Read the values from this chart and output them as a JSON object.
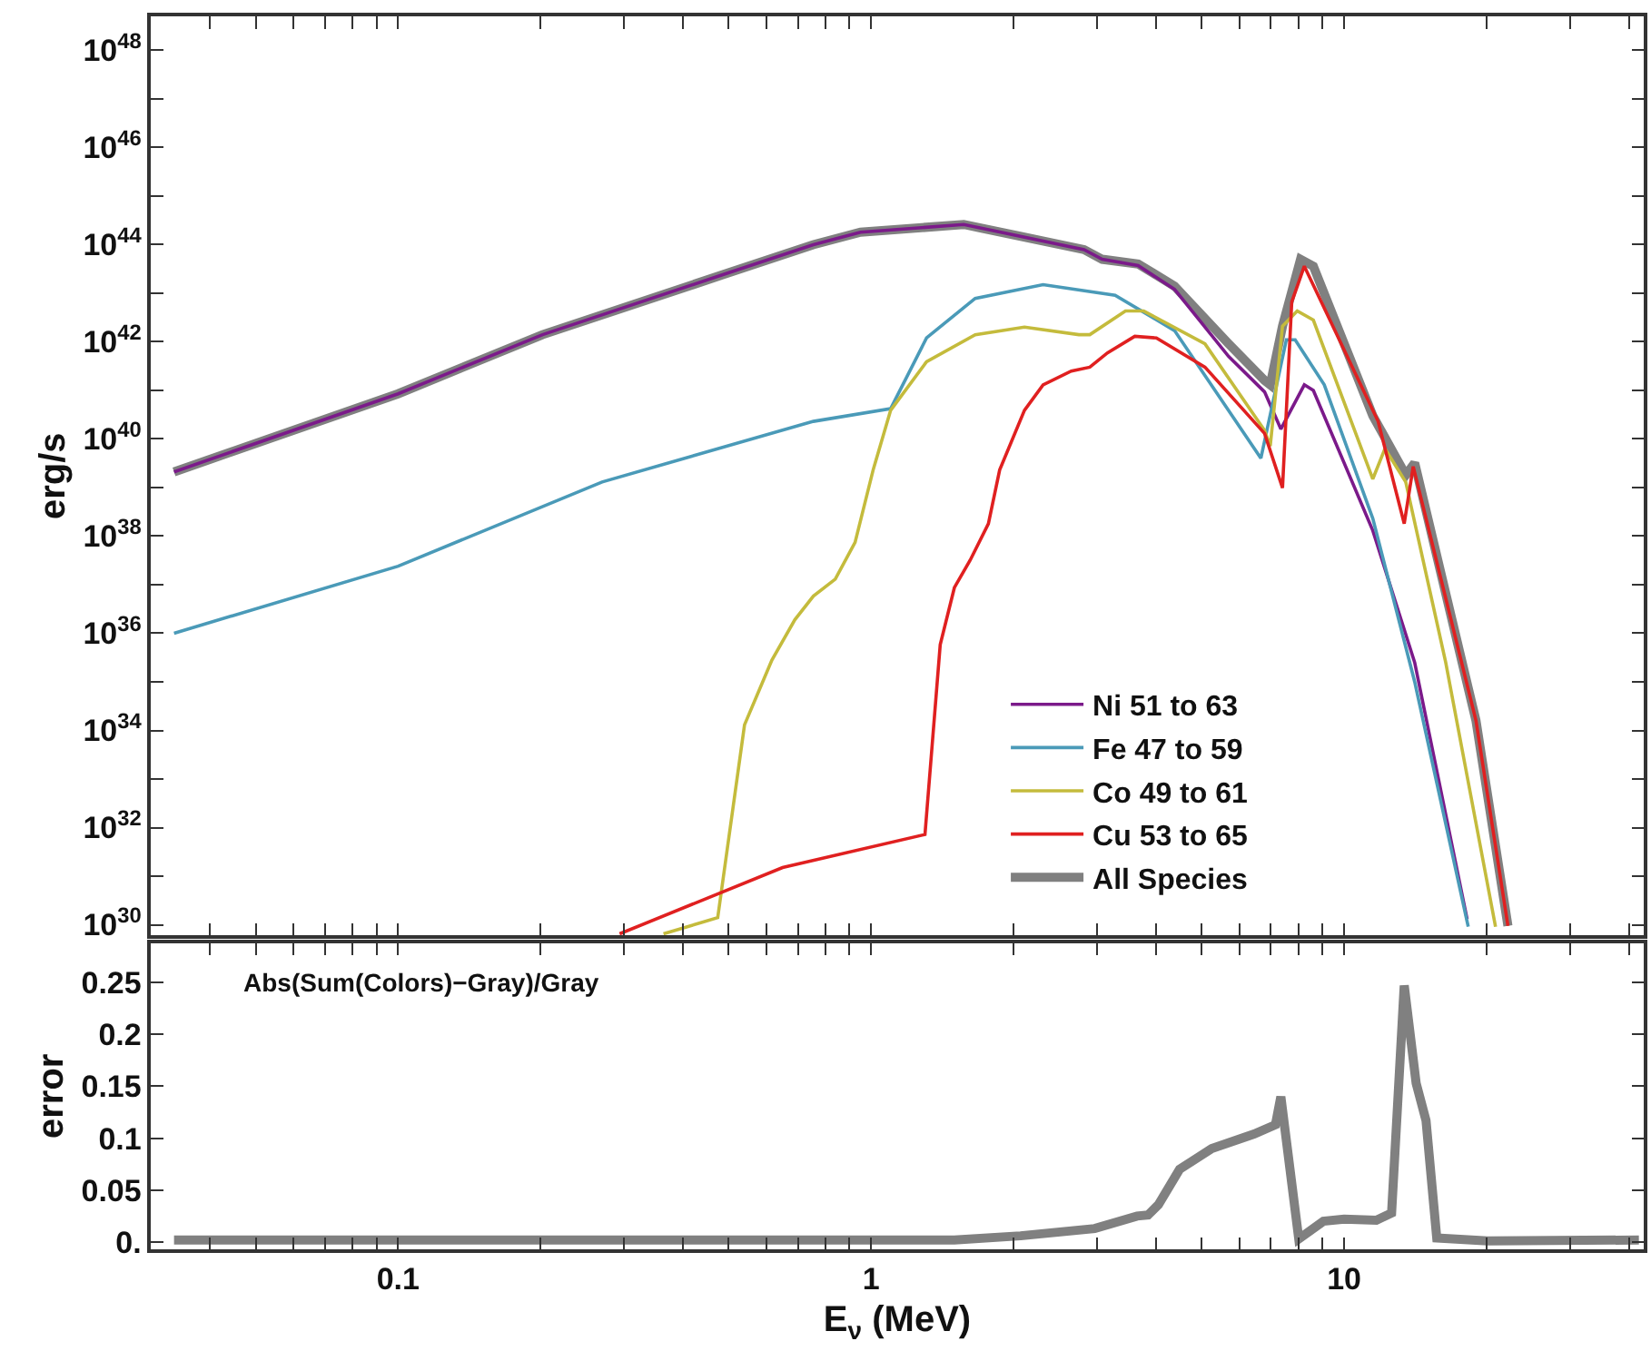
{
  "chart_data": [
    {
      "type": "line",
      "ylabel": "erg/s",
      "log": "xy",
      "legend": "bottom right",
      "tick_labels": "y",
      "xlim": [
        0.03,
        43
      ],
      "xticks": [
        {
          "value": 0.03,
          "label": null
        },
        {
          "value": 0.04,
          "label": null
        },
        {
          "value": 0.05,
          "label": null
        },
        {
          "value": 0.06,
          "label": null
        },
        {
          "value": 0.07,
          "label": null
        },
        {
          "value": 0.08,
          "label": null
        },
        {
          "value": 0.09,
          "label": null
        },
        {
          "value": 0.1,
          "label": null
        },
        {
          "value": 0.2,
          "label": null
        },
        {
          "value": 0.3,
          "label": null
        },
        {
          "value": 0.4,
          "label": null
        },
        {
          "value": 0.5,
          "label": null
        },
        {
          "value": 0.6,
          "label": null
        },
        {
          "value": 0.7,
          "label": null
        },
        {
          "value": 0.8,
          "label": null
        },
        {
          "value": 0.9,
          "label": null
        },
        {
          "value": 1,
          "label": null
        },
        {
          "value": 2,
          "label": null
        },
        {
          "value": 3,
          "label": null
        },
        {
          "value": 4,
          "label": null
        },
        {
          "value": 5,
          "label": null
        },
        {
          "value": 6,
          "label": null
        },
        {
          "value": 7,
          "label": null
        },
        {
          "value": 8,
          "label": null
        },
        {
          "value": 9,
          "label": null
        },
        {
          "value": 10,
          "label": null
        },
        {
          "value": 20,
          "label": null
        },
        {
          "value": 30,
          "label": null
        },
        {
          "value": 40,
          "label": null
        }
      ],
      "ylim": [
        6e+29,
        5e+48
      ],
      "yticks": [
        {
          "value": 1e+30,
          "label": "10$^{30}$"
        },
        {
          "value": 1e+31,
          "label": null
        },
        {
          "value": 1e+32,
          "label": "10$^{32}$"
        },
        {
          "value": 1e+33,
          "label": null
        },
        {
          "value": 1e+34,
          "label": "10$^{34}$"
        },
        {
          "value": 1e+35,
          "label": null
        },
        {
          "value": 1e+36,
          "label": "10$^{36}$"
        },
        {
          "value": 1e+37,
          "label": null
        },
        {
          "value": 1e+38,
          "label": "10$^{38}$"
        },
        {
          "value": 1e+39,
          "label": null
        },
        {
          "value": 1e+40,
          "label": "10$^{40}$"
        },
        {
          "value": 1e+41,
          "label": null
        },
        {
          "value": 1e+42,
          "label": "10$^{42}$"
        },
        {
          "value": 1e+43,
          "label": null
        },
        {
          "value": 1e+44,
          "label": "10$^{44}$"
        },
        {
          "value": 1e+45,
          "label": null
        },
        {
          "value": 1e+46,
          "label": "10$^{46}$"
        },
        {
          "value": 1e+47,
          "label": null
        },
        {
          "value": 1e+48,
          "label": "10$^{48}$"
        }
      ],
      "series": [
        {
          "name": "Ni 51 to 63",
          "color": "#7b1a8a",
          "x": [
            0.0336,
            0.1,
            0.202,
            0.486,
            0.755,
            0.95,
            1.57,
            2.82,
            3.08,
            3.67,
            4.38,
            5.7,
            6.79,
            7.35,
            8.24,
            8.61,
            11.5,
            14.1,
            18.2
          ],
          "values": [
            2.1e+39,
            8.5e+40,
            1.4e+42,
            2.4e+43,
            1e+44,
            1.8e+44,
            2.6e+44,
            7.9e+43,
            5e+43,
            3.7e+43,
            1.2e+43,
            5e+41,
            9.3e+40,
            1.6e+40,
            1.3e+41,
            1e+41,
            1.3e+38,
            2.5e+35,
            1.3e+30
          ]
        },
        {
          "name": "Fe 47 to 59",
          "color": "#4a9ab8",
          "x": [
            0.0336,
            0.1,
            0.27,
            0.755,
            1.1,
            1.31,
            1.66,
            2.31,
            3.28,
            4.38,
            6.67,
            7.55,
            7.88,
            9.08,
            11.5,
            14.1,
            18.3
          ],
          "values": [
            1e+36,
            2.4e+37,
            1.3e+39,
            2.3e+40,
            4.2e+40,
            1.2e+42,
            7.8e+42,
            1.5e+43,
            9.1e+42,
            1.7e+42,
            4e+39,
            1.1e+42,
            1.1e+42,
            1.3e+41,
            2.3e+38,
            1e+35,
            9.1e+29
          ]
        },
        {
          "name": "Co 49 to 61",
          "color": "#c4bb3c",
          "x": [
            0.364,
            0.474,
            0.54,
            0.617,
            0.69,
            0.755,
            0.84,
            0.925,
            1.01,
            1.1,
            1.31,
            1.66,
            2.11,
            2.75,
            2.9,
            3.45,
            3.77,
            5.08,
            6.79,
            6.98,
            7.41,
            7.96,
            8.61,
            11.5,
            12.2,
            13.5,
            16.4,
            20.9
          ],
          "values": [
            6.5e+29,
            1.4e+30,
            1.3e+34,
            2.8e+35,
            1.9e+36,
            5.8e+36,
            1.3e+37,
            7.4e+37,
            2.3e+39,
            3.9e+40,
            3.9e+41,
            1.4e+42,
            2e+42,
            1.4e+42,
            1.4e+42,
            4.3e+42,
            4.3e+42,
            9.1e+41,
            1.5e+40,
            7.1e+39,
            2.1e+42,
            4.3e+42,
            2.8e+42,
            1.5e+39,
            6.3e+39,
            1.3e+39,
            2.5e+35,
            9.1e+29
          ]
        },
        {
          "name": "Cu 53 to 65",
          "color": "#e02020",
          "x": [
            0.294,
            0.65,
            1.3,
            1.4,
            1.5,
            1.62,
            1.77,
            1.87,
            2.11,
            2.31,
            2.65,
            2.9,
            3.16,
            3.61,
            4.01,
            5.08,
            6.79,
            7.41,
            7.75,
            8.24,
            11.8,
            13.4,
            14.0,
            19.0,
            22.2
          ],
          "values": [
            6.5e+29,
            1.5e+31,
            7.2e+31,
            5.8e+35,
            8.7e+36,
            3.2e+37,
            1.8e+38,
            2.3e+39,
            3.9e+40,
            1.3e+41,
            2.5e+41,
            3e+41,
            5.9e+41,
            1.3e+42,
            1.2e+42,
            3e+41,
            1.3e+40,
            9.8e+38,
            6.6e+42,
            3.6e+43,
            2.3e+40,
            1.8e+38,
            2.7e+39,
            1.6e+34,
            9.5e+29
          ]
        },
        {
          "name": "All Species",
          "color": "#808080",
          "x": [
            0.0336,
            0.1,
            0.202,
            0.486,
            0.755,
            0.95,
            1.57,
            2.82,
            3.08,
            3.67,
            4.38,
            5.7,
            6.79,
            6.98,
            7.41,
            8.09,
            8.61,
            11.5,
            13.5,
            14.1,
            19.0,
            22.2
          ],
          "values": [
            2.1e+39,
            8.5e+40,
            1.4e+42,
            2.4e+43,
            1e+44,
            1.8e+44,
            2.6e+44,
            7.9e+43,
            5e+43,
            4e+43,
            1.4e+43,
            9.1e+41,
            1.6e+41,
            1.3e+41,
            2.1e+42,
            5e+43,
            3.6e+43,
            3e+40,
            1.8e+39,
            3.2e+39,
            1.6e+34,
            9.5e+29
          ]
        }
      ]
    },
    {
      "type": "line",
      "xlabel": "E$_{ν}$ (MeV)",
      "ylabel": "error",
      "log": "x",
      "annotations": [
        "Abs(Sum(Colors)−Gray)/Gray"
      ],
      "xlim": [
        0.03,
        43
      ],
      "xticks": [
        {
          "value": 0.03,
          "label": null
        },
        {
          "value": 0.04,
          "label": null
        },
        {
          "value": 0.05,
          "label": null
        },
        {
          "value": 0.06,
          "label": null
        },
        {
          "value": 0.07,
          "label": null
        },
        {
          "value": 0.08,
          "label": null
        },
        {
          "value": 0.09,
          "label": null
        },
        {
          "value": 0.1,
          "label": "0.1"
        },
        {
          "value": 0.2,
          "label": null
        },
        {
          "value": 0.3,
          "label": null
        },
        {
          "value": 0.4,
          "label": null
        },
        {
          "value": 0.5,
          "label": null
        },
        {
          "value": 0.6,
          "label": null
        },
        {
          "value": 0.7,
          "label": null
        },
        {
          "value": 0.8,
          "label": null
        },
        {
          "value": 0.9,
          "label": null
        },
        {
          "value": 1,
          "label": "1"
        },
        {
          "value": 2,
          "label": null
        },
        {
          "value": 3,
          "label": null
        },
        {
          "value": 4,
          "label": null
        },
        {
          "value": 5,
          "label": null
        },
        {
          "value": 6,
          "label": null
        },
        {
          "value": 7,
          "label": null
        },
        {
          "value": 8,
          "label": null
        },
        {
          "value": 9,
          "label": null
        },
        {
          "value": 10,
          "label": "10"
        },
        {
          "value": 20,
          "label": null
        },
        {
          "value": 30,
          "label": null
        },
        {
          "value": 40,
          "label": null
        }
      ],
      "ylim": [
        -0.007,
        0.288
      ],
      "yticks": [
        {
          "value": 0,
          "label": "0."
        },
        0.05,
        0.1,
        0.15,
        0.2,
        0.25
      ],
      "series": [
        {
          "color": "#808080",
          "x": [
            0.0336,
            0.5,
            1.5,
            2.07,
            2.97,
            3.65,
            3.85,
            4.05,
            4.49,
            5.25,
            6.45,
            7.16,
            7.35,
            8.02,
            9.04,
            10,
            11.7,
            12.6,
            13.4,
            14.2,
            14.9,
            15.7,
            20.1,
            42
          ],
          "values": [
            0.002,
            0.002,
            0.002,
            0.006,
            0.013,
            0.025,
            0.026,
            0.036,
            0.07,
            0.09,
            0.104,
            0.113,
            0.14,
            0.003,
            0.02,
            0.022,
            0.021,
            0.028,
            0.247,
            0.153,
            0.117,
            0.004,
            0.001,
            0.002
          ]
        }
      ]
    }
  ]
}
